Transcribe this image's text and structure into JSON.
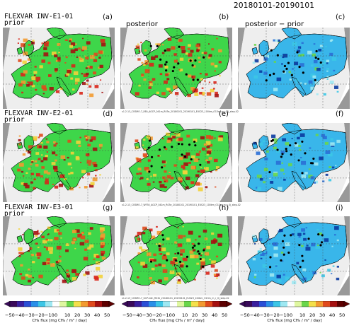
{
  "date_range": "20180101-20190101",
  "rows": [
    {
      "title": "FLEXVAR INV-E1-01",
      "note": "v1.2.13_COSMO-7_E60_AGCP_041m_R03e_20180101_20190101_EUS23_100km_O13m_m_r_0j_step-02"
    },
    {
      "title": "FLEXVAR INV-E2-01",
      "note": "v1.2.13_COSMO-7_WF30_AGCP_041m_R03e_20180101_20190101_EUS23_100km_O13m_m_r_0j_step-02"
    },
    {
      "title": "FLEXVAR INV-E3-01",
      "note": "v1.2.13_COSMO-7_GCP-tdin_R03e_20180101_20190101_EUS23_100km_O13m_m_r_0j_step-02"
    }
  ],
  "col_labels": [
    "prior",
    "posterior",
    "posterior − prior"
  ],
  "panel_tags": [
    "(a)",
    "(b)",
    "(c)",
    "(d)",
    "(e)",
    "(f)",
    "(g)",
    "(h)",
    "(i)"
  ],
  "colorbar": {
    "ticks": [
      "−50",
      "−40",
      "−30",
      "−20",
      "−10",
      "0",
      "10",
      "20",
      "30",
      "40",
      "50"
    ],
    "label": "CH₄ flux [mg CH₄ / m² / day]",
    "colors": [
      "#3a0a5a",
      "#3a1f9e",
      "#2b4fd6",
      "#2a8fe8",
      "#3cc6e6",
      "#9ee8f2",
      "#ffffff",
      "#dff7a0",
      "#6ad64a",
      "#f4e04a",
      "#f29a30",
      "#e04a1c",
      "#a51010",
      "#5e0000"
    ]
  },
  "colors": {
    "ocean": "#ffffff",
    "land_low": "#3ed64a",
    "land_mid": "#f2d23a",
    "land_high": "#d8261a",
    "diff_neg": "#39b6ea",
    "out_domain": "#999999"
  }
}
